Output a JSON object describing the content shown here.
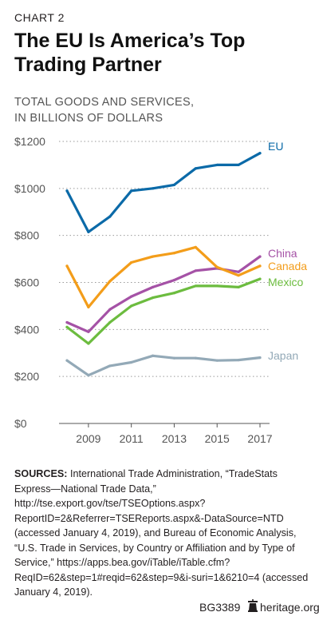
{
  "header": {
    "chart_number": "CHART 2",
    "title_line1": "The EU Is America’s Top",
    "title_line2": "Trading Partner",
    "ytitle_line1": "TOTAL GOODS AND SERVICES,",
    "ytitle_line2": "IN BILLIONS OF DOLLARS"
  },
  "chart_data": {
    "type": "line",
    "title": "The EU Is America’s Top Trading Partner",
    "ylabel": "TOTAL GOODS AND SERVICES, IN BILLIONS OF DOLLARS",
    "xlabel": "",
    "x": [
      2008,
      2009,
      2010,
      2011,
      2012,
      2013,
      2014,
      2015,
      2016,
      2017
    ],
    "x_tick_labels": [
      "2009",
      "2011",
      "2013",
      "2015",
      "2017"
    ],
    "y_tick_labels": [
      "$0",
      "$200",
      "$400",
      "$600",
      "$800",
      "$1000",
      "$1200"
    ],
    "ylim": [
      0,
      1200
    ],
    "grid": "horizontal dotted",
    "legend": "direct labels at line ends",
    "series": [
      {
        "name": "EU",
        "color": "#0b6aa8",
        "values": [
          990,
          815,
          880,
          990,
          1000,
          1015,
          1085,
          1100,
          1100,
          1150
        ]
      },
      {
        "name": "China",
        "color": "#a552a6",
        "values": [
          430,
          390,
          485,
          540,
          580,
          610,
          650,
          660,
          645,
          710
        ]
      },
      {
        "name": "Canada",
        "color": "#f39d1a",
        "values": [
          670,
          495,
          605,
          685,
          710,
          725,
          750,
          665,
          630,
          670
        ]
      },
      {
        "name": "Mexico",
        "color": "#6cbc3f",
        "values": [
          410,
          340,
          430,
          500,
          535,
          555,
          585,
          585,
          580,
          615
        ]
      },
      {
        "name": "Japan",
        "color": "#93a9b7",
        "values": [
          268,
          205,
          245,
          260,
          288,
          278,
          278,
          268,
          270,
          280
        ]
      }
    ]
  },
  "sources": {
    "label": "SOURCES:",
    "text": "International Trade Administration, “TradeStats Express—National Trade Data,” http://tse.export.gov/tse/TSEOptions.aspx?ReportID=2&Referrer=TSEReports.aspx&-DataSource=NTD (accessed January 4, 2019), and Bureau of Economic Analysis, “U.S. Trade in Services, by Country or Affiliation and by Type of Service,” https://apps.bea.gov/iTable/iTable.cfm?ReqID=62&step=1#reqid=62&step=9&i-suri=1&6210=4 (accessed January 4, 2019)."
  },
  "footer": {
    "report_id": "BG3389",
    "site": "heritage.org",
    "icon": "heritage-bell-icon"
  }
}
